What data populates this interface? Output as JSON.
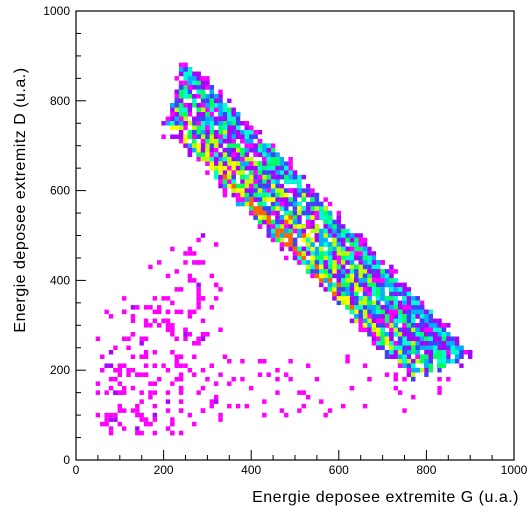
{
  "chart_data": {
    "type": "heatmap",
    "title": "",
    "xlabel": "Energie deposee extremite G (u.a.)",
    "ylabel": "Energie deposee extremitz D (u.a.)",
    "xlim": [
      0,
      1000
    ],
    "ylim": [
      0,
      1000
    ],
    "x_ticks": [
      0,
      200,
      400,
      600,
      800,
      1000
    ],
    "y_ticks": [
      0,
      200,
      400,
      600,
      800,
      1000
    ],
    "grid": false,
    "legend": "none",
    "colorscale": [
      "#ff00ff",
      "#aa00ff",
      "#4040ff",
      "#00b0ff",
      "#00ffd0",
      "#00ff60",
      "#c0ff00",
      "#ffff00",
      "#ff6000"
    ],
    "bands": [
      {
        "x_start": 245,
        "y_start": 870,
        "x_end": 890,
        "y_end": 225,
        "peak": 0.55
      },
      {
        "x_start": 235,
        "y_start": 830,
        "x_end": 850,
        "y_end": 215,
        "peak": 0.7
      },
      {
        "x_start": 225,
        "y_start": 795,
        "x_end": 815,
        "y_end": 205,
        "peak": 0.8
      },
      {
        "x_start": 215,
        "y_start": 760,
        "x_end": 780,
        "y_end": 195,
        "peak": 0.95
      }
    ],
    "diffuse_region": {
      "x_range": [
        50,
        330
      ],
      "y_range": [
        55,
        520
      ],
      "density": "sparse"
    }
  }
}
